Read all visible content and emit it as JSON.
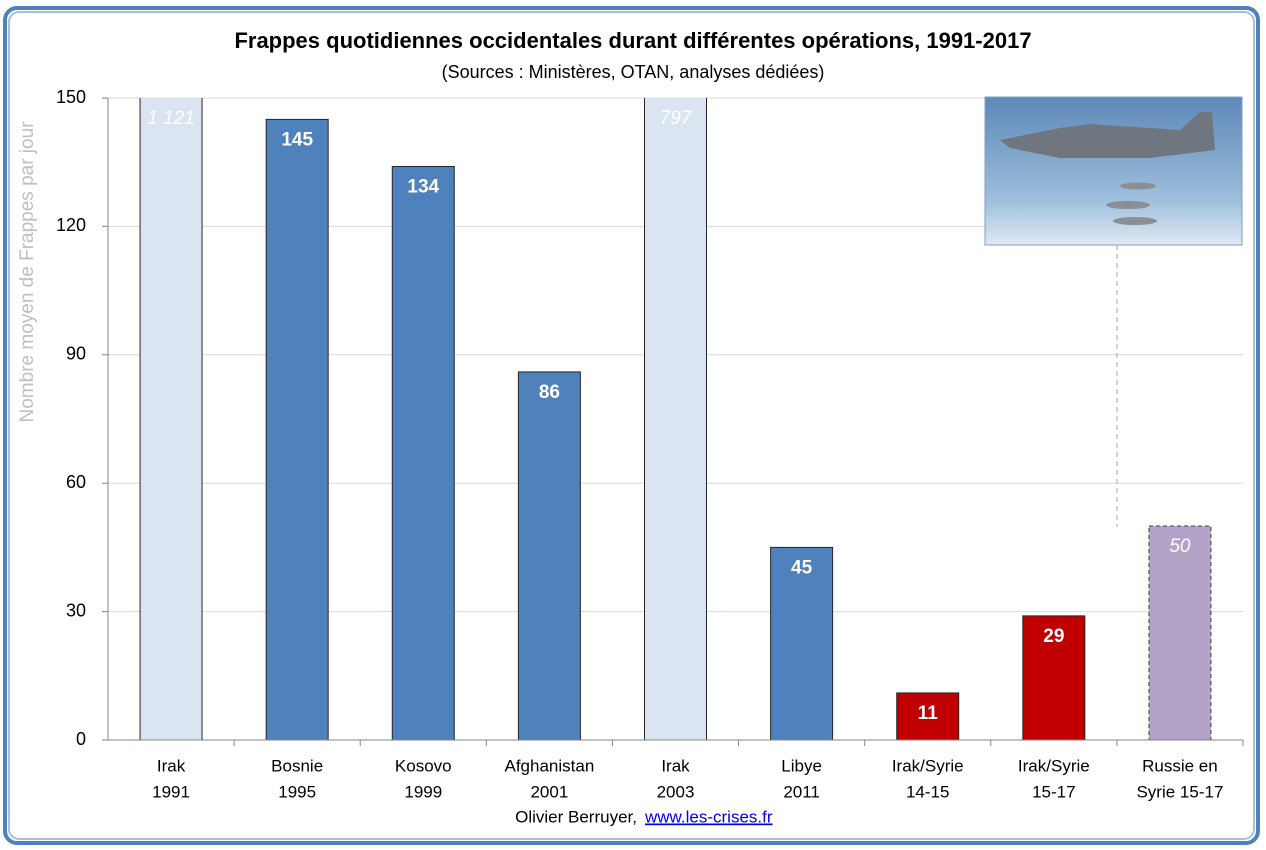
{
  "chart_data": {
    "type": "bar",
    "title": "Frappes quotidiennes occidentales durant différentes opérations, 1991-2017",
    "subtitle": "(Sources : Ministères, OTAN, analyses dédiées)",
    "y_label": "Nombre moyen de Frappes par jour",
    "categories": [
      [
        "Irak",
        "1991"
      ],
      [
        "Bosnie",
        "1995"
      ],
      [
        "Kosovo",
        "1999"
      ],
      [
        "Afghanistan",
        "2001"
      ],
      [
        "Irak",
        "2003"
      ],
      [
        "Libye",
        "2011"
      ],
      [
        "Irak/Syrie",
        "14-15"
      ],
      [
        "Irak/Syrie",
        "15-17"
      ],
      [
        "Russie en",
        "Syrie 15-17"
      ]
    ],
    "values": [
      1121,
      145,
      134,
      86,
      797,
      45,
      11,
      29,
      50
    ],
    "value_labels": [
      "1 121",
      "145",
      "134",
      "86",
      "797",
      "45",
      "11",
      "29",
      "50"
    ],
    "colors": [
      "#dbe5f1",
      "#4f81bd",
      "#4f81bd",
      "#4f81bd",
      "#dbe5f1",
      "#4f81bd",
      "#c00000",
      "#c00000",
      "#b3a2c7"
    ],
    "ylim": [
      0,
      150
    ],
    "yticks": [
      0,
      30,
      60,
      90,
      120,
      150
    ],
    "grid": true,
    "footer": {
      "author": "Olivier Berruyer,",
      "link": "www.les-crises.fr"
    }
  }
}
